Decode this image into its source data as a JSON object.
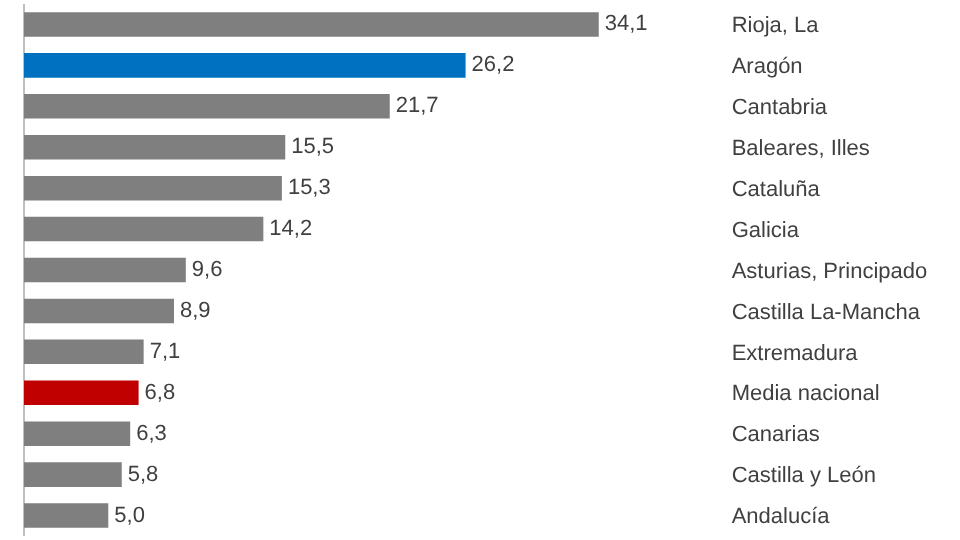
{
  "chart_data": {
    "type": "bar",
    "orientation": "horizontal",
    "categories": [
      "Rioja, La",
      "Aragón",
      "Cantabria",
      "Baleares, Illes",
      "Cataluña",
      "Galicia",
      "Asturias, Principado",
      "Castilla La-Mancha",
      "Extremadura",
      "Media nacional",
      "Canarias",
      "Castilla y León",
      "Andalucía"
    ],
    "values": [
      34.1,
      26.2,
      21.7,
      15.5,
      15.3,
      14.2,
      9.6,
      8.9,
      7.1,
      6.8,
      6.3,
      5.8,
      5.0
    ],
    "colors": [
      "#7f7f7f",
      "#0070c0",
      "#7f7f7f",
      "#7f7f7f",
      "#7f7f7f",
      "#7f7f7f",
      "#7f7f7f",
      "#7f7f7f",
      "#7f7f7f",
      "#c00000",
      "#7f7f7f",
      "#7f7f7f",
      "#7f7f7f"
    ],
    "value_labels": [
      "34,1",
      "26,2",
      "21,7",
      "15,5",
      "15,3",
      "14,2",
      "9,6",
      "8,9",
      "7,1",
      "6,8",
      "6,3",
      "5,8",
      "5,0"
    ],
    "tick_labels": "y"
  }
}
